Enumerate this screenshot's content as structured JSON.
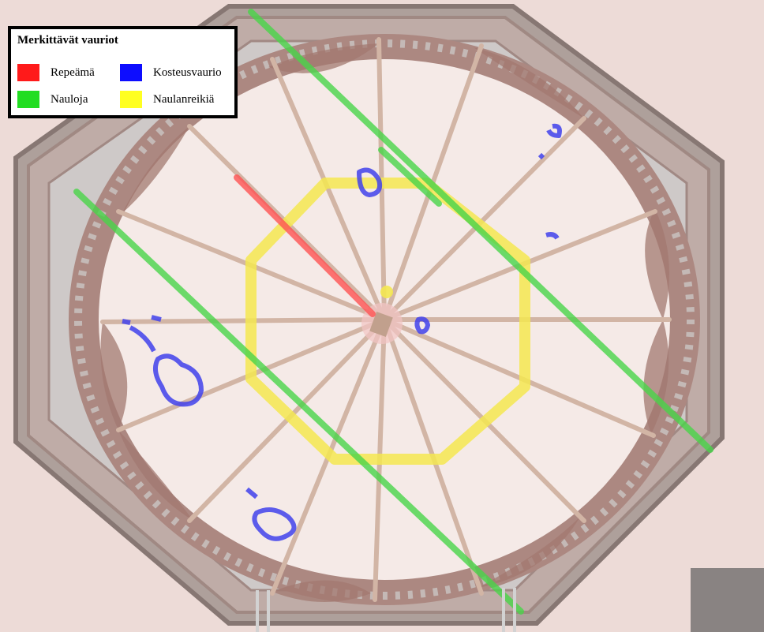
{
  "legend": {
    "title": "Merkittävät vauriot",
    "items": [
      {
        "label": "Repeämä",
        "color": "#ff1a1a"
      },
      {
        "label": "Kosteusvaurio",
        "color": "#0d0dff"
      },
      {
        "label": "Nauloja",
        "color": "#22dd22"
      },
      {
        "label": "Naulanreikiä",
        "color": "#ffff22"
      }
    ]
  },
  "colors": {
    "ceiling": "#f1e4e0",
    "canvas_stripe": "#ead4cf",
    "frame_dark": "#8a5a50",
    "frame_border": "#bfb6b2",
    "ornament": "#a98c86",
    "rib": "#c2a090",
    "tear": "#ff3030",
    "moisture": "#1818e8",
    "nails": "#22cc22",
    "nail_holes": "#f2e22a"
  }
}
